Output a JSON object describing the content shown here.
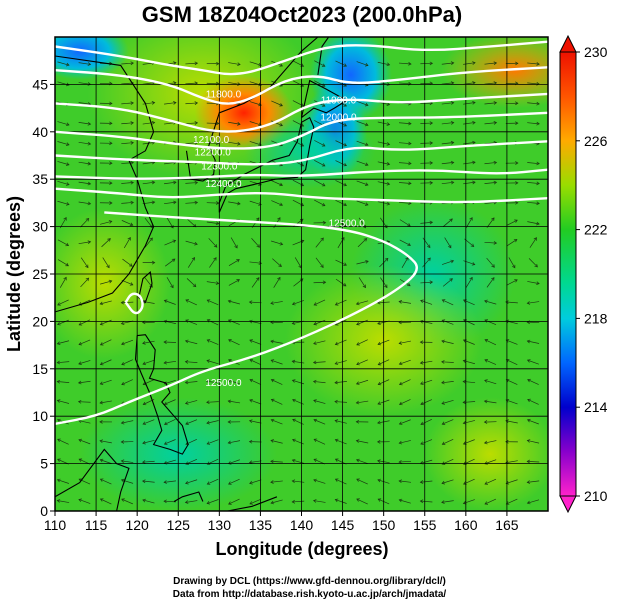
{
  "chart_data": {
    "type": "heatmap",
    "title": "GSM 18Z04Oct2023 (200.0hPa)",
    "xlabel": "Longitude (degrees)",
    "ylabel": "Latitude  (degrees)",
    "xlim": [
      110,
      170
    ],
    "ylim": [
      0,
      50
    ],
    "xticks": [
      "110",
      "115",
      "120",
      "125",
      "130",
      "135",
      "140",
      "145",
      "150",
      "155",
      "160",
      "165"
    ],
    "yticks": [
      "0",
      "5",
      "10",
      "15",
      "20",
      "25",
      "30",
      "35",
      "40",
      "45"
    ],
    "colorbar": {
      "ticks": [
        "210",
        "214",
        "218",
        "222",
        "226",
        "230"
      ],
      "range": [
        210,
        230
      ],
      "colors": [
        "#ff22cc",
        "#8800cc",
        "#0000cc",
        "#0066ff",
        "#00ccdd",
        "#00d890",
        "#22cc22",
        "#99dd00",
        "#ffaa00",
        "#ff5500",
        "#ee1100"
      ]
    },
    "contours": [
      {
        "label": "11800.0",
        "lon": 130.5,
        "lat": 43.6
      },
      {
        "label": "11900.0",
        "lon": 144.5,
        "lat": 43.0
      },
      {
        "label": "12000.0",
        "lon": 144.5,
        "lat": 41.2
      },
      {
        "label": "12100.0",
        "lon": 129.0,
        "lat": 38.8
      },
      {
        "label": "12200.0",
        "lon": 129.2,
        "lat": 37.5
      },
      {
        "label": "12300.0",
        "lon": 130.0,
        "lat": 36.0
      },
      {
        "label": "12400.0",
        "lon": 130.5,
        "lat": 34.2
      },
      {
        "label": "12500.0",
        "lon": 145.5,
        "lat": 30.0
      },
      {
        "label": "12500.0",
        "lon": 130.5,
        "lat": 13.2
      }
    ]
  },
  "credits": {
    "line1": "Drawing by DCL (https://www.gfd-dennou.org/library/dcl/)",
    "line2": "Data from http://database.rish.kyoto-u.ac.jp/arch/jmadata/"
  }
}
